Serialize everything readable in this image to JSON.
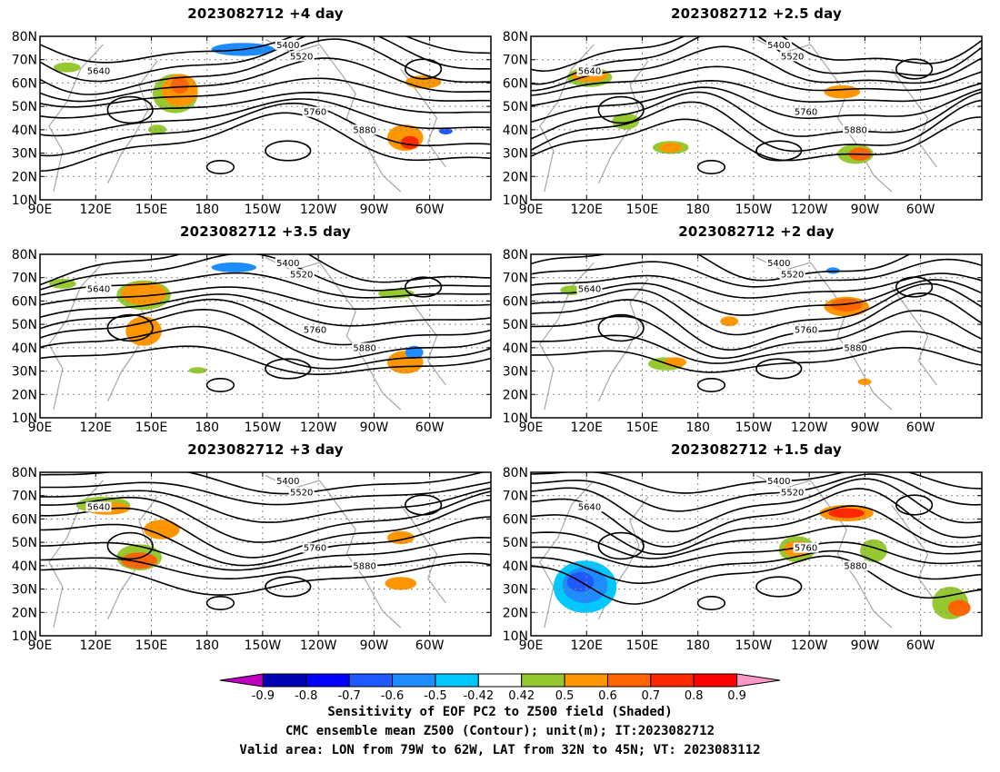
{
  "panels": [
    {
      "id": "p1",
      "title": "2023082712 +4 day"
    },
    {
      "id": "p2",
      "title": "2023082712 +2.5 day"
    },
    {
      "id": "p3",
      "title": "2023082712 +3.5 day"
    },
    {
      "id": "p4",
      "title": "2023082712 +2 day"
    },
    {
      "id": "p5",
      "title": "2023082712 +3 day"
    },
    {
      "id": "p6",
      "title": "2023082712 +1.5 day"
    }
  ],
  "lat_ticks": [
    "10N",
    "20N",
    "30N",
    "40N",
    "50N",
    "60N",
    "70N",
    "80N"
  ],
  "lon_ticks": [
    "90E",
    "120E",
    "150E",
    "180",
    "150W",
    "120W",
    "90W",
    "60W"
  ],
  "contour_levels": [
    "5400",
    "5520",
    "5640",
    "5760",
    "5880"
  ],
  "colorbar": {
    "labels": [
      "-0.9",
      "-0.8",
      "-0.7",
      "-0.6",
      "-0.5",
      "-0.42",
      "0.42",
      "0.5",
      "0.6",
      "0.7",
      "0.8",
      "0.9"
    ],
    "colors": [
      "#c000c0",
      "#0000b4",
      "#0000ff",
      "#1e5aff",
      "#1e8cff",
      "#00c8ff",
      "#ffffff",
      "#96c832",
      "#ff9600",
      "#ff6400",
      "#ff2800",
      "#ff0000",
      "#ff96c8"
    ]
  },
  "footer": {
    "line1": "Sensitivity of EOF PC2 to Z500 field (Shaded)",
    "line2": "CMC ensemble mean Z500 (Contour); unit(m); IT:2023082712",
    "line3": "Valid area: LON from 79W to 62W, LAT from 32N to 45N; VT: 2023083112"
  }
}
